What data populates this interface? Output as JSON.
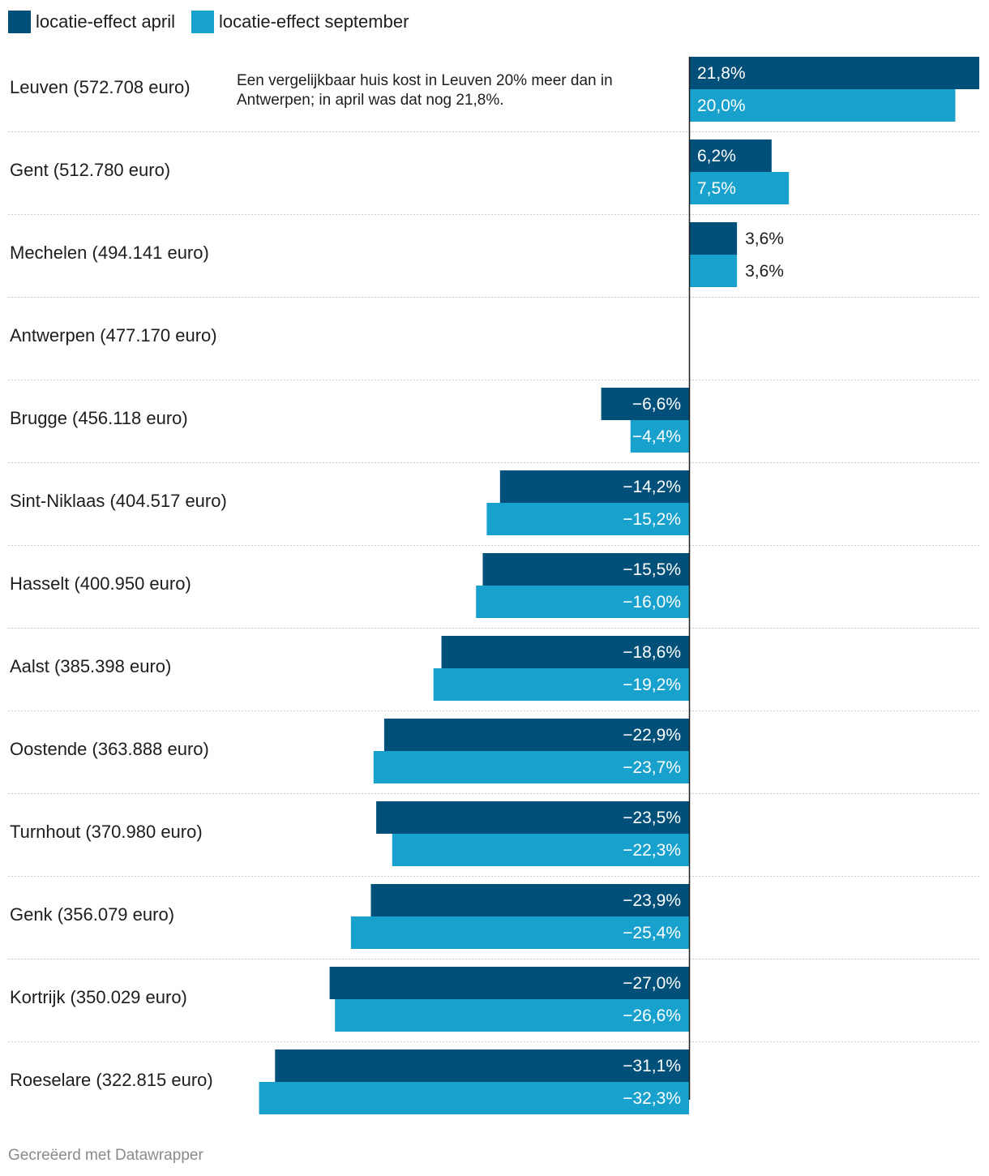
{
  "legend": [
    {
      "label": "locatie-effect april",
      "color": "#01507a"
    },
    {
      "label": "locatie-effect september",
      "color": "#18a1cd"
    }
  ],
  "annotation": "Een vergelijkbaar huis kost in Leuven 20% meer dan in Antwerpen; in april was dat nog 21,8%.",
  "footer": "Gecreëerd met Datawrapper",
  "chart_data": {
    "type": "bar",
    "orientation": "horizontal",
    "title": "",
    "xlabel": "",
    "ylabel": "",
    "xlim": [
      -32.3,
      21.8
    ],
    "grid": false,
    "legend_position": "top-left",
    "categories": [
      "Leuven (572.708 euro)",
      "Gent (512.780 euro)",
      "Mechelen (494.141 euro)",
      "Antwerpen (477.170 euro)",
      "Brugge (456.118 euro)",
      "Sint-Niklaas (404.517 euro)",
      "Hasselt (400.950 euro)",
      "Aalst (385.398 euro)",
      "Oostende (363.888 euro)",
      "Turnhout (370.980 euro)",
      "Genk (356.079 euro)",
      "Kortrijk (350.029 euro)",
      "Roeselare (322.815 euro)"
    ],
    "series": [
      {
        "name": "locatie-effect april",
        "color": "#01507a",
        "values": [
          21.8,
          6.2,
          3.6,
          null,
          -6.6,
          -14.2,
          -15.5,
          -18.6,
          -22.9,
          -23.5,
          -23.9,
          -27.0,
          -31.1
        ],
        "labels": [
          "21,8%",
          "6,2%",
          "3,6%",
          "",
          "−6,6%",
          "−14,2%",
          "−15,5%",
          "−18,6%",
          "−22,9%",
          "−23,5%",
          "−23,9%",
          "−27,0%",
          "−31,1%"
        ]
      },
      {
        "name": "locatie-effect september",
        "color": "#18a1cd",
        "values": [
          20.0,
          7.5,
          3.6,
          null,
          -4.4,
          -15.2,
          -16.0,
          -19.2,
          -23.7,
          -22.3,
          -25.4,
          -26.6,
          -32.3
        ],
        "labels": [
          "20,0%",
          "7,5%",
          "3,6%",
          "",
          "−4,4%",
          "−15,2%",
          "−16,0%",
          "−19,2%",
          "−23,7%",
          "−22,3%",
          "−25,4%",
          "−26,6%",
          "−32,3%"
        ]
      }
    ]
  }
}
